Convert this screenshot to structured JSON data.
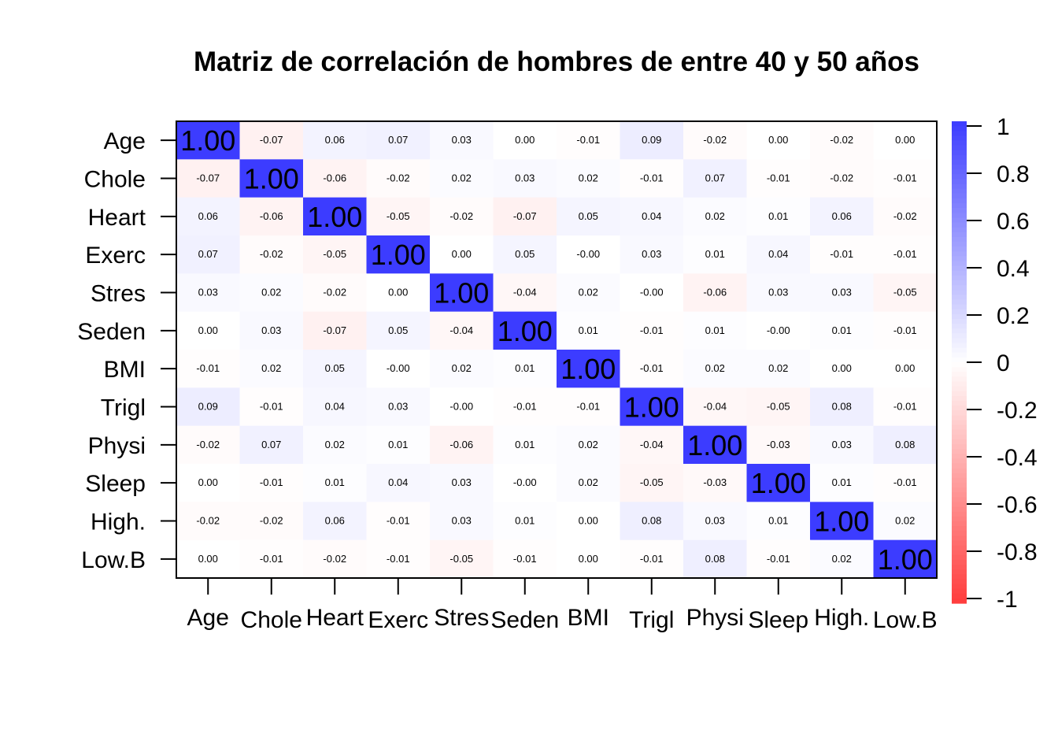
{
  "chart_data": {
    "type": "heatmap",
    "title": "Matriz de correlación de hombres de entre 40 y 50 años",
    "labels": [
      "Age",
      "Chole",
      "Heart",
      "Exerc",
      "Stres",
      "Seden",
      "BMI",
      "Trigl",
      "Physi",
      "Sleep",
      "High.",
      "Low.B"
    ],
    "matrix": [
      [
        "1.00",
        "-0.07",
        "0.06",
        "0.07",
        "0.03",
        "0.00",
        "-0.01",
        "0.09",
        "-0.02",
        "0.00",
        "-0.02",
        "0.00"
      ],
      [
        "-0.07",
        "1.00",
        "-0.06",
        "-0.02",
        "0.02",
        "0.03",
        "0.02",
        "-0.01",
        "0.07",
        "-0.01",
        "-0.02",
        "-0.01"
      ],
      [
        "0.06",
        "-0.06",
        "1.00",
        "-0.05",
        "-0.02",
        "-0.07",
        "0.05",
        "0.04",
        "0.02",
        "0.01",
        "0.06",
        "-0.02"
      ],
      [
        "0.07",
        "-0.02",
        "-0.05",
        "1.00",
        "0.00",
        "0.05",
        "-0.00",
        "0.03",
        "0.01",
        "0.04",
        "-0.01",
        "-0.01"
      ],
      [
        "0.03",
        "0.02",
        "-0.02",
        "0.00",
        "1.00",
        "-0.04",
        "0.02",
        "-0.00",
        "-0.06",
        "0.03",
        "0.03",
        "-0.05"
      ],
      [
        "0.00",
        "0.03",
        "-0.07",
        "0.05",
        "-0.04",
        "1.00",
        "0.01",
        "-0.01",
        "0.01",
        "-0.00",
        "0.01",
        "-0.01"
      ],
      [
        "-0.01",
        "0.02",
        "0.05",
        "-0.00",
        "0.02",
        "0.01",
        "1.00",
        "-0.01",
        "0.02",
        "0.02",
        "0.00",
        "0.00"
      ],
      [
        "0.09",
        "-0.01",
        "0.04",
        "0.03",
        "-0.00",
        "-0.01",
        "-0.01",
        "1.00",
        "-0.04",
        "-0.05",
        "0.08",
        "-0.01"
      ],
      [
        "-0.02",
        "0.07",
        "0.02",
        "0.01",
        "-0.06",
        "0.01",
        "0.02",
        "-0.04",
        "1.00",
        "-0.03",
        "0.03",
        "0.08"
      ],
      [
        "0.00",
        "-0.01",
        "0.01",
        "0.04",
        "0.03",
        "-0.00",
        "0.02",
        "-0.05",
        "-0.03",
        "1.00",
        "0.01",
        "-0.01"
      ],
      [
        "-0.02",
        "-0.02",
        "0.06",
        "-0.01",
        "0.03",
        "0.01",
        "0.00",
        "0.08",
        "0.03",
        "0.01",
        "1.00",
        "0.02"
      ],
      [
        "0.00",
        "-0.01",
        "-0.02",
        "-0.01",
        "-0.05",
        "-0.01",
        "0.00",
        "-0.01",
        "0.08",
        "-0.01",
        "0.02",
        "1.00"
      ]
    ],
    "colorbar": {
      "range": [
        -1,
        1
      ],
      "ticks": [
        "1",
        "0.8",
        "0.6",
        "0.4",
        "0.2",
        "0",
        "-0.2",
        "-0.4",
        "-0.6",
        "-0.8",
        "-1"
      ],
      "positive_color": "#3c3cff",
      "negative_color": "#ff3c3c",
      "mid_color": "#ffffff"
    }
  }
}
